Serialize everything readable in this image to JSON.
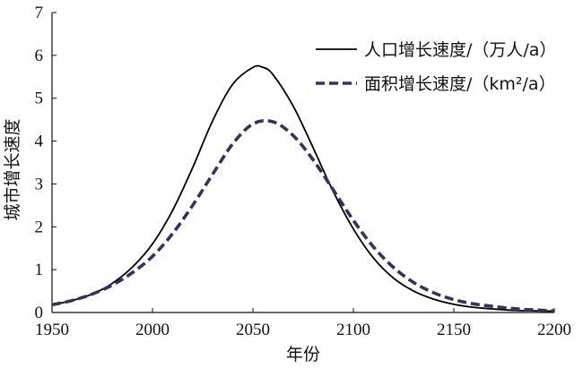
{
  "chart_data": {
    "type": "line",
    "title": "",
    "xlabel": "年份",
    "ylabel": "城市增长速度",
    "xlim": [
      1950,
      2200
    ],
    "ylim": [
      0,
      7
    ],
    "xticks": [
      1950,
      2000,
      2050,
      2100,
      2150,
      2200
    ],
    "yticks": [
      0,
      1,
      2,
      3,
      4,
      5,
      6,
      7
    ],
    "grid": false,
    "legend_position": "top-right",
    "series": [
      {
        "name": "人口增长速度/（万人/a）",
        "style": "solid",
        "color": "#000000",
        "x": [
          1950,
          1960,
          1970,
          1980,
          1990,
          2000,
          2010,
          2020,
          2030,
          2040,
          2050,
          2055,
          2060,
          2070,
          2080,
          2090,
          2100,
          2110,
          2120,
          2130,
          2140,
          2150,
          2160,
          2170,
          2180,
          2190,
          2200
        ],
        "y": [
          0.18,
          0.28,
          0.43,
          0.68,
          1.06,
          1.6,
          2.38,
          3.38,
          4.48,
          5.33,
          5.72,
          5.72,
          5.55,
          4.82,
          3.84,
          2.82,
          1.95,
          1.27,
          0.8,
          0.5,
          0.31,
          0.19,
          0.12,
          0.08,
          0.05,
          0.04,
          0.03
        ]
      },
      {
        "name": "面积增长速度/（km²/a）",
        "style": "dashed",
        "color": "#3b2f5c",
        "x": [
          1950,
          1960,
          1970,
          1980,
          1990,
          2000,
          2010,
          2020,
          2030,
          2040,
          2050,
          2060,
          2070,
          2080,
          2090,
          2100,
          2110,
          2120,
          2130,
          2140,
          2150,
          2160,
          2170,
          2180,
          2190,
          2200
        ],
        "y": [
          0.18,
          0.28,
          0.43,
          0.64,
          0.93,
          1.31,
          1.84,
          2.5,
          3.23,
          3.94,
          4.4,
          4.45,
          4.13,
          3.56,
          2.86,
          2.15,
          1.53,
          1.05,
          0.7,
          0.46,
          0.3,
          0.2,
          0.14,
          0.09,
          0.06,
          0.04
        ]
      }
    ]
  }
}
